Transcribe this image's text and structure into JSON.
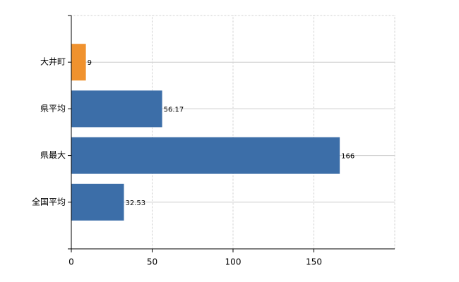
{
  "chart_data": {
    "type": "bar",
    "orientation": "horizontal",
    "categories": [
      "大井町",
      "県平均",
      "県最大",
      "全国平均"
    ],
    "values": [
      9,
      56.17,
      166,
      32.53
    ],
    "colors": [
      "#f0922e",
      "#3c6ea8",
      "#3c6ea8",
      "#3c6ea8"
    ],
    "xlim": [
      0,
      200
    ],
    "xticks": [
      0,
      50,
      100,
      150
    ],
    "grid": true
  }
}
